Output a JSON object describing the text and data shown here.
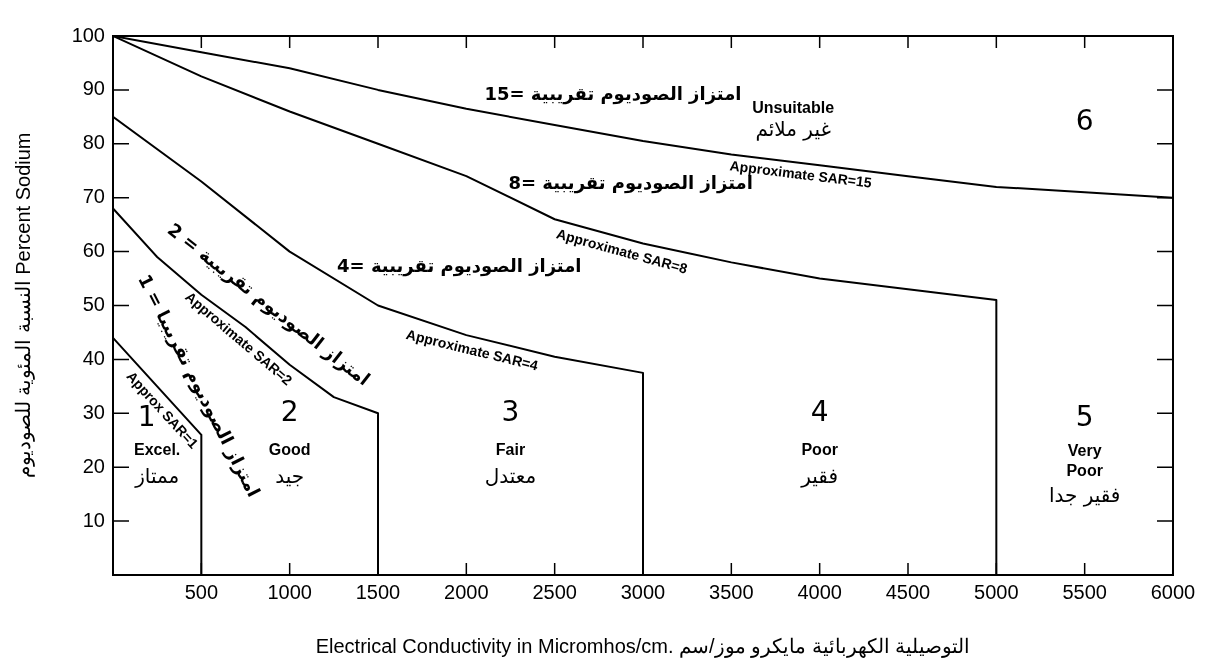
{
  "chart_data": {
    "type": "line",
    "xlabel": "Electrical Conductivity in Micromhos/cm. التوصيلية الكهربائية مايكرو موز/سم",
    "ylabel": "النسبة المئوية للصوديوم Percent Sodium",
    "xlim": [
      0,
      6000
    ],
    "xticks": [
      500,
      1000,
      1500,
      2000,
      2500,
      3000,
      3500,
      4000,
      4500,
      5000,
      5500,
      6000
    ],
    "ylim": [
      0,
      100
    ],
    "yticks": [
      10,
      20,
      30,
      40,
      50,
      60,
      70,
      80,
      90,
      100
    ],
    "marker": "none",
    "line_style": "solid",
    "series": [
      {
        "name": "Approximate SAR=15",
        "color": "#000000",
        "x": [
          0,
          500,
          1000,
          1500,
          2000,
          2500,
          3000,
          3500,
          4000,
          4500,
          5000,
          5500,
          6000
        ],
        "values": [
          100,
          97,
          94,
          90,
          86.5,
          83.5,
          80.5,
          78,
          76,
          74,
          72,
          71,
          70
        ]
      },
      {
        "name": "Approximate SAR=8",
        "color": "#000000",
        "x": [
          0,
          500,
          1000,
          1500,
          2000,
          2500,
          3000,
          3500,
          4000,
          4500,
          5000,
          5000
        ],
        "values": [
          100,
          92.5,
          86,
          80,
          74,
          66,
          61.5,
          58,
          55,
          53,
          51,
          0
        ]
      },
      {
        "name": "Approximate SAR=4",
        "color": "#000000",
        "x": [
          0,
          500,
          1000,
          1500,
          2000,
          2500,
          3000,
          3000
        ],
        "values": [
          85,
          73,
          60,
          50,
          44.5,
          40.5,
          37.5,
          0
        ]
      },
      {
        "name": "Approximate SAR=2",
        "color": "#000000",
        "x": [
          0,
          250,
          500,
          750,
          1000,
          1250,
          1500,
          1500
        ],
        "values": [
          68,
          59,
          52,
          46,
          39,
          33,
          30,
          0
        ]
      },
      {
        "name": "Approx SAR=1",
        "color": "#000000",
        "x": [
          0,
          125,
          250,
          375,
          500,
          500
        ],
        "values": [
          44,
          39.5,
          35,
          30.5,
          26,
          0
        ]
      }
    ],
    "annotations": [
      "امتزاز الصوديوم تقريبية =15",
      "امتزاز الصوديوم تقريبية =8",
      "امتزاز الصوديوم تقريبية =4",
      "امتزاز الصوديوم تقريبية = 2",
      "امتزاز الصوديوم تقريبيا = 1",
      "1",
      "Excel.",
      "ممتاز",
      "2",
      "Good",
      "جيد",
      "3",
      "Fair",
      "معتدل",
      "4",
      "Poor",
      "فقير",
      "5",
      "Very Poor",
      "فقير جدا",
      "6",
      "Unsuitable",
      "غير ملائم"
    ]
  }
}
